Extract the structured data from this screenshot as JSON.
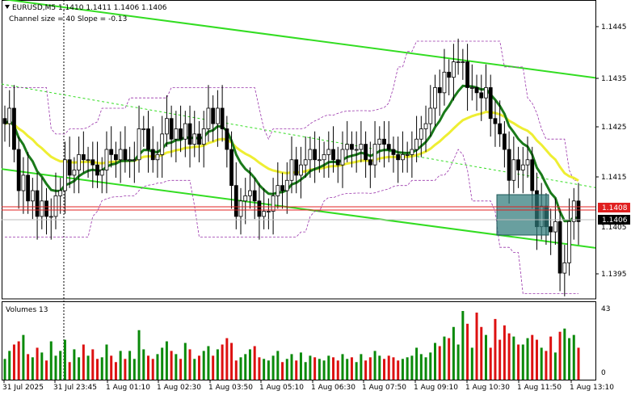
{
  "header": {
    "symbol_line": "EURUSD,M5  1.1410 1.1411 1.1406 1.1406",
    "channel_line": "Channel size = 40 Slope = -0.13"
  },
  "volume_header": {
    "label": "Volumes 13"
  },
  "colors": {
    "bull": "#0a8a0a",
    "bear": "#dd1111",
    "candle": "#000000",
    "channel": "#33dd22",
    "channel_mid": "#33dd22",
    "ma_fast": "#1a7a1a",
    "ma_slow": "#eeee33",
    "envelope": "#9933aa",
    "price_line": "#e02020",
    "box": "#2f7a7a"
  },
  "chart_data": [
    {
      "type": "candlestick",
      "title": "EURUSD,M5",
      "ohlc": [
        1.141,
        1.1411,
        1.1406,
        1.1406
      ],
      "ylim": [
        1.1391,
        1.1449
      ],
      "y_ticks": [
        "1.1445",
        "1.1435",
        "1.1425",
        "1.1415",
        "1.1395"
      ],
      "x_tick_labels": [
        "31 Jul 2025",
        "31 Jul 23:45",
        "1 Aug 01:10",
        "1 Aug 02:30",
        "1 Aug 03:50",
        "1 Aug 05:10",
        "1 Aug 06:30",
        "1 Aug 07:50",
        "1 Aug 09:10",
        "1 Aug 10:30",
        "1 Aug 11:50",
        "1 Aug 13:10"
      ],
      "price_labels": {
        "bid": "1.1408",
        "last": "1.1406",
        "partial_tick": "1.1405"
      },
      "close": [
        1.1425,
        1.1428,
        1.142,
        1.1412,
        1.1415,
        1.141,
        1.1412,
        1.1407,
        1.141,
        1.1407,
        1.1407,
        1.1411,
        1.1412,
        1.1418,
        1.1415,
        1.1416,
        1.1419,
        1.1418,
        1.1418,
        1.1417,
        1.1415,
        1.1416,
        1.142,
        1.1419,
        1.1418,
        1.142,
        1.1418,
        1.1418,
        1.1418,
        1.1424,
        1.1424,
        1.142,
        1.1418,
        1.1419,
        1.1423,
        1.1426,
        1.1422,
        1.1424,
        1.1422,
        1.1425,
        1.1421,
        1.1423,
        1.1421,
        1.1424,
        1.1428,
        1.1425,
        1.1428,
        1.1424,
        1.142,
        1.1413,
        1.1407,
        1.141,
        1.1411,
        1.1412,
        1.141,
        1.1407,
        1.1408,
        1.1408,
        1.1411,
        1.1413,
        1.1412,
        1.1414,
        1.1418,
        1.1415,
        1.1417,
        1.1418,
        1.142,
        1.1418,
        1.1418,
        1.1419,
        1.142,
        1.1418,
        1.1417,
        1.142,
        1.1421,
        1.142,
        1.142,
        1.1421,
        1.1418,
        1.1417,
        1.1421,
        1.1422,
        1.1421,
        1.142,
        1.1419,
        1.1418,
        1.1419,
        1.1419,
        1.142,
        1.1422,
        1.1424,
        1.1425,
        1.1428,
        1.1432,
        1.1431,
        1.1435,
        1.1434,
        1.1437,
        1.1437,
        1.1437,
        1.1432,
        1.1432,
        1.1431,
        1.143,
        1.1432,
        1.1426,
        1.1425,
        1.1423,
        1.142,
        1.1414,
        1.1418,
        1.1416,
        1.1417,
        1.1418,
        1.1412,
        1.1405,
        1.1409,
        1.1405,
        1.1404,
        1.1406,
        1.1396,
        1.1398,
        1.1406,
        1.141,
        1.1406
      ],
      "volume_ylim": [
        0,
        43
      ],
      "volume_ticks": [
        "43",
        "0"
      ],
      "volumes": [
        13,
        18,
        22,
        24,
        28,
        16,
        14,
        20,
        17,
        12,
        24,
        15,
        18,
        25,
        11,
        19,
        14,
        22,
        15,
        19,
        13,
        14,
        22,
        15,
        11,
        18,
        13,
        18,
        13,
        31,
        19,
        15,
        13,
        16,
        20,
        24,
        18,
        16,
        13,
        23,
        19,
        13,
        15,
        18,
        21,
        15,
        19,
        22,
        26,
        23,
        12,
        14,
        16,
        19,
        21,
        14,
        13,
        12,
        15,
        18,
        11,
        13,
        16,
        12,
        17,
        11,
        15,
        14,
        13,
        12,
        15,
        14,
        12,
        16,
        13,
        14,
        11,
        16,
        12,
        14,
        18,
        15,
        13,
        15,
        14,
        12,
        13,
        14,
        15,
        20,
        16,
        14,
        17,
        23,
        21,
        27,
        26,
        33,
        22,
        43,
        35,
        20,
        42,
        33,
        28,
        20,
        38,
        25,
        34,
        29,
        27,
        22,
        22,
        26,
        28,
        25,
        20,
        18,
        27,
        17,
        30,
        32,
        26,
        28,
        20
      ]
    }
  ]
}
